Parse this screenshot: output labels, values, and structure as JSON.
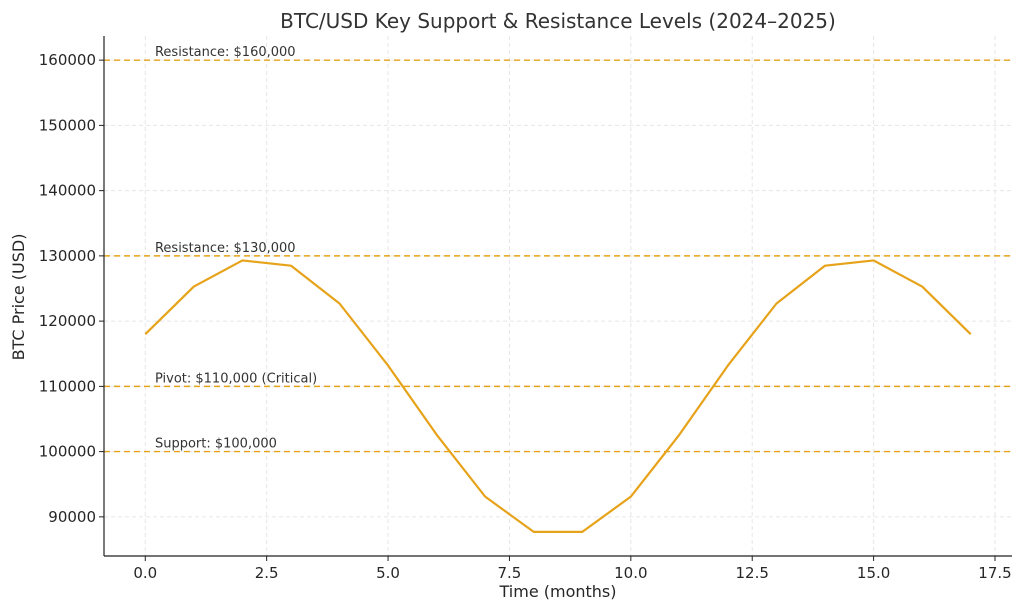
{
  "chart_data": {
    "type": "line",
    "title": "BTC/USD Key Support & Resistance Levels (2024–2025)",
    "xlabel": "Time (months)",
    "ylabel": "BTC Price (USD)",
    "xlim": [
      -0.85,
      17.85
    ],
    "ylim": [
      84000,
      163700
    ],
    "x_ticks": [
      0.0,
      2.5,
      5.0,
      7.5,
      10.0,
      12.5,
      15.0,
      17.5
    ],
    "x_tick_labels": [
      "0.0",
      "2.5",
      "5.0",
      "7.5",
      "10.0",
      "12.5",
      "15.0",
      "17.5"
    ],
    "y_ticks": [
      90000,
      100000,
      110000,
      120000,
      130000,
      140000,
      150000,
      160000
    ],
    "y_tick_labels": [
      "90000",
      "100000",
      "110000",
      "120000",
      "130000",
      "140000",
      "150000",
      "160000"
    ],
    "grid": true,
    "line_color": "#e6a219",
    "series": [
      {
        "x": [
          0,
          1,
          2,
          3,
          4,
          5,
          6,
          7,
          8,
          9,
          10,
          11,
          12,
          13,
          14,
          15,
          16,
          17
        ],
        "values": [
          118000,
          125300,
          129300,
          128500,
          122700,
          113200,
          102600,
          93100,
          87700,
          87700,
          93100,
          102600,
          113200,
          122700,
          128500,
          129300,
          125300,
          118000
        ]
      }
    ],
    "reference_lines": [
      {
        "y": 160000,
        "label": "Resistance: $160,000",
        "color": "#e6a219"
      },
      {
        "y": 130000,
        "label": "Resistance: $130,000",
        "color": "#e6a219"
      },
      {
        "y": 110000,
        "label": "Pivot: $110,000 (Critical)",
        "color": "#e6a219"
      },
      {
        "y": 100000,
        "label": "Support: $100,000",
        "color": "#e6a219"
      }
    ]
  }
}
